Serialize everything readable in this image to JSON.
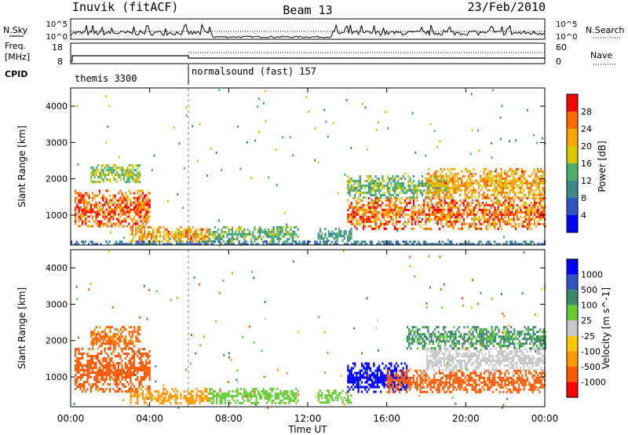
{
  "header": {
    "station": "Inuvik (fitACF)",
    "beam": "Beam 13",
    "date": "23/Feb/2010"
  },
  "strip_labels": {
    "nsky": "N.Sky",
    "nsearch": "N.Search",
    "freq_line1": "Freq.",
    "freq_line2": "[MHz]",
    "nave": "Nave",
    "cpid": "CPID",
    "ns_ticks": {
      "hi": "10^5",
      "lo": "10^0"
    },
    "freq_ticks": [
      "18",
      "8"
    ],
    "nave_ticks": [
      "60",
      "0"
    ]
  },
  "cpid_segments": [
    {
      "label": "themis 3300",
      "start_hour": 0.0,
      "end_hour": 6.0
    },
    {
      "label": "normalsound (fast) 157",
      "start_hour": 6.0,
      "end_hour": 24.0
    }
  ],
  "colors": {
    "power": [
      "#0000ff",
      "#2f55c4",
      "#3b8a8a",
      "#4caf6b",
      "#d7c800",
      "#ffa500",
      "#ff6a00",
      "#ff0000"
    ],
    "velocity": [
      "#ff0000",
      "#ff5a00",
      "#ff9a00",
      "#ffc800",
      "#c8c8c8",
      "#66cc33",
      "#3b8a6b",
      "#2f55c4",
      "#0000ff"
    ]
  },
  "chart_data": [
    {
      "type": "heatmap",
      "title": "",
      "xlabel": "Time UT",
      "ylabel": "Slant Range [km]",
      "xlim": [
        0,
        24
      ],
      "ylim": [
        180,
        4500
      ],
      "x_ticks": [
        "00:00",
        "04:00",
        "08:00",
        "12:00",
        "16:00",
        "20:00",
        "00:00"
      ],
      "y_ticks": [
        "1000",
        "2000",
        "3000",
        "4000"
      ],
      "colorbar": {
        "label": "Power [dB]",
        "ticks": [
          "4",
          "8",
          "12",
          "16",
          "20",
          "24",
          "28"
        ],
        "range": [
          0,
          30
        ]
      },
      "regions": [
        {
          "t0": 0.2,
          "t1": 4.0,
          "r0": 700,
          "r1": 1700,
          "value": 26
        },
        {
          "t0": 1.0,
          "t1": 3.5,
          "r0": 1900,
          "r1": 2400,
          "value": 16
        },
        {
          "t0": 3.0,
          "t1": 7.0,
          "r0": 250,
          "r1": 700,
          "value": 22
        },
        {
          "t0": 7.0,
          "t1": 11.5,
          "r0": 300,
          "r1": 700,
          "value": 14
        },
        {
          "t0": 12.5,
          "t1": 14.2,
          "r0": 300,
          "r1": 650,
          "value": 12
        },
        {
          "t0": 14.0,
          "t1": 24.0,
          "r0": 650,
          "r1": 1500,
          "value": 25
        },
        {
          "t0": 14.0,
          "t1": 19.0,
          "r0": 1500,
          "r1": 2100,
          "value": 14
        },
        {
          "t0": 18.0,
          "t1": 24.0,
          "r0": 1500,
          "r1": 2300,
          "value": 22
        },
        {
          "t0": 0.0,
          "t1": 24.0,
          "r0": 180,
          "r1": 300,
          "value": 8
        }
      ]
    },
    {
      "type": "heatmap",
      "title": "",
      "xlabel": "Time UT",
      "ylabel": "Slant Range [km]",
      "xlim": [
        0,
        24
      ],
      "ylim": [
        180,
        4500
      ],
      "x_ticks": [
        "00:00",
        "04:00",
        "08:00",
        "12:00",
        "16:00",
        "20:00",
        "00:00"
      ],
      "y_ticks": [
        "1000",
        "2000",
        "3000",
        "4000"
      ],
      "colorbar": {
        "label": "Velocity [m s^-1]",
        "ticks": [
          "1000",
          "500",
          "100",
          "25",
          "-25",
          "-100",
          "-500",
          "-1000"
        ]
      },
      "regions": [
        {
          "t0": 0.2,
          "t1": 4.0,
          "r0": 600,
          "r1": 1800,
          "value": -300
        },
        {
          "t0": 1.0,
          "t1": 3.5,
          "r0": 1800,
          "r1": 2400,
          "value": -120
        },
        {
          "t0": 3.0,
          "t1": 7.0,
          "r0": 250,
          "r1": 700,
          "value": -80
        },
        {
          "t0": 7.0,
          "t1": 11.5,
          "r0": 300,
          "r1": 700,
          "value": 80
        },
        {
          "t0": 12.5,
          "t1": 14.2,
          "r0": 300,
          "r1": 650,
          "value": 60
        },
        {
          "t0": 14.0,
          "t1": 17.0,
          "r0": 600,
          "r1": 1400,
          "value": 700
        },
        {
          "t0": 16.0,
          "t1": 24.0,
          "r0": 600,
          "r1": 1200,
          "value": -150
        },
        {
          "t0": 18.0,
          "t1": 24.0,
          "r0": 1200,
          "r1": 1800,
          "value": 0
        },
        {
          "t0": 17.0,
          "t1": 24.0,
          "r0": 1800,
          "r1": 2400,
          "value": 120
        }
      ]
    }
  ]
}
